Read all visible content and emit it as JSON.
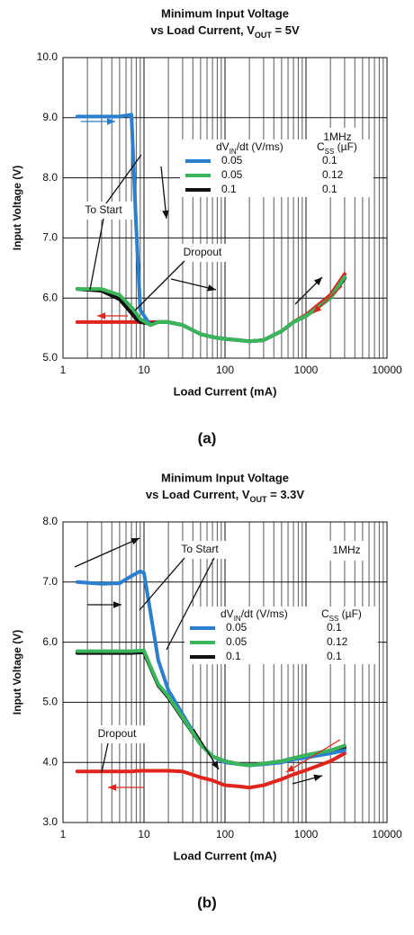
{
  "chart_data": [
    {
      "type": "line",
      "title": "Minimum Input Voltage",
      "subtitle": [
        "vs Load Current, V",
        "OUT",
        " = 5V"
      ],
      "x_label": "Load Current (mA)",
      "y_label": "Input Voltage (V)",
      "x_log": true,
      "grid": true,
      "xlim": [
        1,
        10000
      ],
      "xticks": [
        1,
        10,
        100,
        1000,
        10000
      ],
      "x_minor_ticks": [
        2,
        3,
        4,
        5,
        6,
        7,
        8,
        9,
        20,
        30,
        40,
        50,
        60,
        70,
        80,
        90,
        200,
        300,
        400,
        500,
        600,
        700,
        800,
        900,
        2000,
        3000,
        4000,
        5000,
        6000,
        7000,
        8000,
        9000
      ],
      "ylim": [
        5,
        10
      ],
      "yticks": [
        {
          "value": 5,
          "label": "5.0"
        },
        {
          "value": 6,
          "label": "6.0"
        },
        {
          "value": 7,
          "label": "7.0"
        },
        {
          "value": 8,
          "label": "8.0"
        },
        {
          "value": 9,
          "label": "9.0"
        },
        {
          "value": 10,
          "label": "10.0"
        }
      ],
      "legend_columns": [
        [
          "dV",
          "IN",
          "/dt (V/ms)"
        ],
        [
          "C",
          "SS",
          " (µF)"
        ]
      ],
      "x": [
        1.5,
        3,
        5,
        7,
        8,
        9,
        12,
        15,
        20,
        30,
        50,
        70,
        100,
        150,
        200,
        300,
        500,
        700,
        1000,
        2000,
        3000
      ],
      "series": [
        {
          "name": "0.05",
          "css": "0.1",
          "color": "#2a7fcf",
          "values": [
            9.02,
            9.02,
            9.02,
            9.05,
            7.2,
            5.8,
            5.55,
            5.6,
            5.6,
            5.55,
            5.4,
            5.35,
            5.32,
            5.3,
            5.28,
            5.3,
            5.45,
            5.6,
            5.7,
            6.0,
            6.35
          ]
        },
        {
          "name": "0.05",
          "css": "0.12",
          "color": "#3bb55a",
          "values": [
            6.15,
            6.15,
            6.05,
            5.85,
            5.75,
            5.65,
            5.55,
            5.6,
            5.6,
            5.55,
            5.4,
            5.35,
            5.32,
            5.3,
            5.28,
            5.3,
            5.45,
            5.6,
            5.7,
            6.0,
            6.35
          ]
        },
        {
          "name": "0.1",
          "css": "0.1",
          "color": "#111111",
          "values": [
            6.15,
            6.12,
            5.98,
            5.75,
            5.65,
            5.6,
            5.57,
            5.6,
            5.6,
            5.55,
            5.4,
            5.35,
            5.32,
            5.3,
            5.28,
            5.3,
            5.45,
            5.6,
            5.7,
            6.0,
            6.33
          ]
        },
        {
          "color": "#e0261c",
          "values": [
            5.6,
            5.6,
            5.6,
            5.6,
            5.6,
            5.6,
            5.6,
            5.6,
            5.6,
            5.55,
            5.4,
            5.35,
            5.32,
            5.3,
            5.28,
            5.3,
            5.45,
            5.6,
            5.72,
            6.05,
            6.4
          ]
        }
      ],
      "annotations": [
        "1MHz",
        "To Start",
        "Dropout"
      ],
      "panel_label": "(a)"
    },
    {
      "type": "line",
      "title": "Minimum Input Voltage",
      "subtitle": [
        "vs Load Current, V",
        "OUT",
        " = 3.3V"
      ],
      "x_label": "Load Current (mA)",
      "y_label": "Input Voltage (V)",
      "x_log": true,
      "grid": true,
      "xlim": [
        1,
        10000
      ],
      "xticks": [
        1,
        10,
        100,
        1000,
        10000
      ],
      "x_minor_ticks": [
        2,
        3,
        4,
        5,
        6,
        7,
        8,
        9,
        20,
        30,
        40,
        50,
        60,
        70,
        80,
        90,
        200,
        300,
        400,
        500,
        600,
        700,
        800,
        900,
        2000,
        3000,
        4000,
        5000,
        6000,
        7000,
        8000,
        9000
      ],
      "ylim": [
        3,
        8
      ],
      "yticks": [
        {
          "value": 3,
          "label": "3.0"
        },
        {
          "value": 4,
          "label": "4.0"
        },
        {
          "value": 5,
          "label": "5.0"
        },
        {
          "value": 6,
          "label": "6.0"
        },
        {
          "value": 7,
          "label": "7.0"
        },
        {
          "value": 8,
          "label": "8.0"
        }
      ],
      "legend_columns": [
        [
          "dV",
          "IN",
          "/dt (V/ms)"
        ],
        [
          "C",
          "SS",
          " (µF)"
        ]
      ],
      "x": [
        1.5,
        3,
        5,
        7,
        9,
        10,
        12,
        15,
        20,
        30,
        50,
        70,
        100,
        150,
        200,
        300,
        500,
        700,
        1000,
        2000,
        3000
      ],
      "series": [
        {
          "name": "0.05",
          "css": "0.1",
          "color": "#2a7fcf",
          "values": [
            7.0,
            6.97,
            6.98,
            7.1,
            7.18,
            7.15,
            6.5,
            5.7,
            5.2,
            4.8,
            4.3,
            4.1,
            4.0,
            3.97,
            3.95,
            3.97,
            4.0,
            4.05,
            4.08,
            4.15,
            4.2
          ]
        },
        {
          "name": "0.05",
          "css": "0.12",
          "color": "#3bb55a",
          "values": [
            5.85,
            5.85,
            5.85,
            5.85,
            5.86,
            5.86,
            5.6,
            5.3,
            5.1,
            4.75,
            4.3,
            4.1,
            4.02,
            3.97,
            3.95,
            3.98,
            4.02,
            4.07,
            4.12,
            4.2,
            4.28
          ]
        },
        {
          "name": "0.1",
          "css": "0.1",
          "color": "#111111",
          "values": [
            5.82,
            5.82,
            5.82,
            5.82,
            5.83,
            5.83,
            5.58,
            5.28,
            5.08,
            4.73,
            4.3,
            4.1,
            4.02,
            3.97,
            3.95,
            3.98,
            4.02,
            4.07,
            4.12,
            4.2,
            4.25
          ]
        },
        {
          "color": "#e0261c",
          "values": [
            3.85,
            3.85,
            3.85,
            3.85,
            3.86,
            3.86,
            3.86,
            3.86,
            3.86,
            3.85,
            3.75,
            3.7,
            3.62,
            3.6,
            3.58,
            3.62,
            3.72,
            3.8,
            3.87,
            4.02,
            4.15
          ]
        }
      ],
      "annotations": [
        "1MHz",
        "To Start",
        "Dropout"
      ],
      "panel_label": "(b)"
    }
  ]
}
